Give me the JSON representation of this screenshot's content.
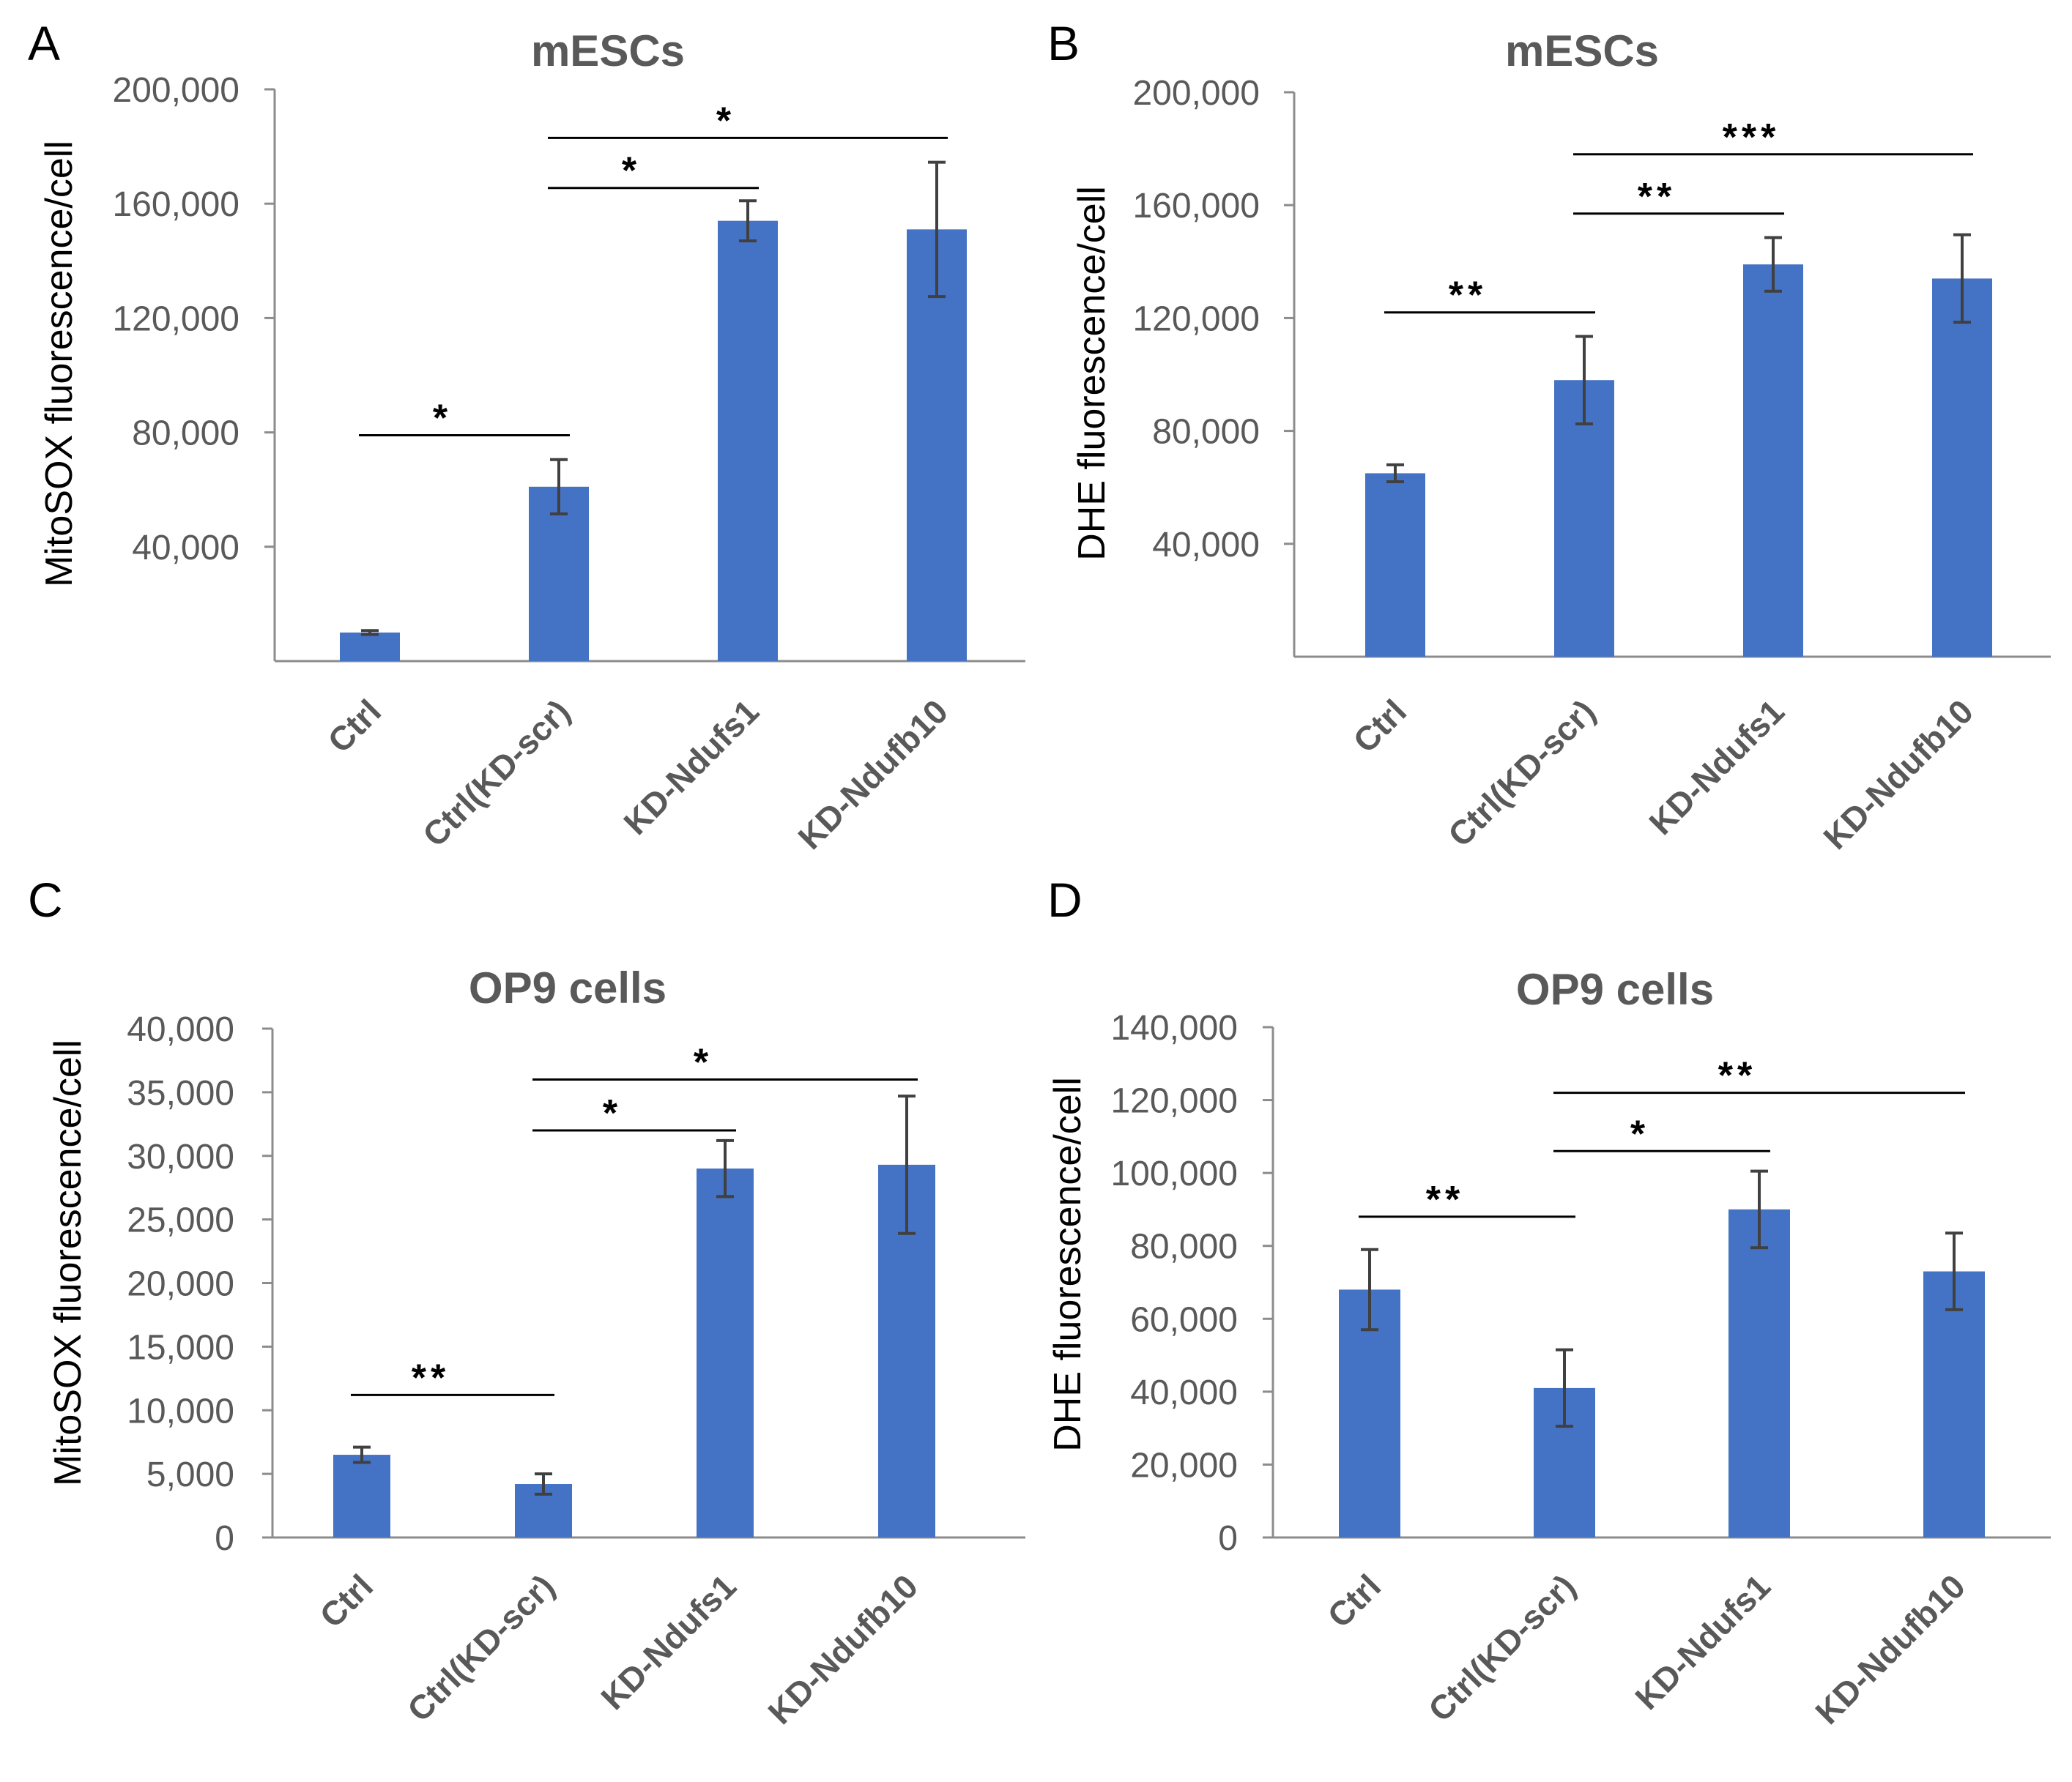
{
  "colors": {
    "bar": "#4472C4",
    "axis": "#8C8C8C",
    "tick_text": "#595959",
    "title": "#595959",
    "label": "#000000",
    "error_bar": "#404040",
    "sig_line": "#000000"
  },
  "chart_data": [
    {
      "panel": "A",
      "type": "bar",
      "title": "mESCs",
      "ylabel": "MitoSOX fluorescence/cell",
      "xlabel": "",
      "categories": [
        "Ctrl",
        "Ctrl(KD-scr)",
        "KD-Ndufs1",
        "KD-Ndufb10"
      ],
      "values": [
        10000,
        61000,
        154000,
        151000
      ],
      "errors": [
        700,
        9500,
        7000,
        23500
      ],
      "ylim": [
        0,
        200000
      ],
      "yticks": [
        40000,
        80000,
        120000,
        160000,
        200000
      ],
      "ytick_labels": [
        "40,000",
        "80,000",
        "120,000",
        "160,000",
        "200,000"
      ],
      "grid": false,
      "significance": [
        {
          "from": 0,
          "to": 1,
          "label": "*",
          "level": 79000
        },
        {
          "from": 1,
          "to": 2,
          "label": "*",
          "level": 165500
        },
        {
          "from": 1,
          "to": 3,
          "label": "*",
          "level": 183000
        }
      ]
    },
    {
      "panel": "B",
      "type": "bar",
      "title": "mESCs",
      "ylabel": "DHE fluorescence/cell",
      "xlabel": "",
      "categories": [
        "Ctrl",
        "Ctrl(KD-scr)",
        "KD-Ndufs1",
        "KD-Ndufb10"
      ],
      "values": [
        65000,
        98000,
        139000,
        134000
      ],
      "errors": [
        3000,
        15500,
        9500,
        15500
      ],
      "ylim": [
        0,
        200000
      ],
      "yticks": [
        40000,
        80000,
        120000,
        160000,
        200000
      ],
      "ytick_labels": [
        "40,000",
        "80,000",
        "120,000",
        "160,000",
        "200,000"
      ],
      "grid": false,
      "significance": [
        {
          "from": 0,
          "to": 1,
          "label": "**",
          "level": 122000
        },
        {
          "from": 1,
          "to": 2,
          "label": "**",
          "level": 157000
        },
        {
          "from": 1,
          "to": 3,
          "label": "***",
          "level": 178000
        }
      ]
    },
    {
      "panel": "C",
      "type": "bar",
      "title": "OP9 cells",
      "ylabel": "MitoSOX fluorescence/cell",
      "xlabel": "",
      "categories": [
        "Ctrl",
        "Ctrl(KD-scr)",
        "KD-Ndufs1",
        "KD-Ndufb10"
      ],
      "values": [
        6500,
        4200,
        29000,
        29300
      ],
      "errors": [
        600,
        800,
        2200,
        5400
      ],
      "ylim": [
        0,
        40000
      ],
      "yticks": [
        0,
        5000,
        10000,
        15000,
        20000,
        25000,
        30000,
        35000,
        40000
      ],
      "ytick_labels": [
        "0",
        "5,000",
        "10,000",
        "15,000",
        "20,000",
        "25,000",
        "30,000",
        "35,000",
        "40,000"
      ],
      "grid": false,
      "significance": [
        {
          "from": 0,
          "to": 1,
          "label": "**",
          "level": 11200
        },
        {
          "from": 1,
          "to": 2,
          "label": "*",
          "level": 32000
        },
        {
          "from": 1,
          "to": 3,
          "label": "*",
          "level": 36000
        }
      ]
    },
    {
      "panel": "D",
      "type": "bar",
      "title": "OP9 cells",
      "ylabel": "DHE fluorescence/cell",
      "xlabel": "",
      "categories": [
        "Ctrl",
        "Ctrl(KD-scr)",
        "KD-Ndufs1",
        "KD-Ndufb10"
      ],
      "values": [
        68000,
        41000,
        90000,
        73000
      ],
      "errors": [
        11000,
        10500,
        10500,
        10500
      ],
      "ylim": [
        0,
        140000
      ],
      "yticks": [
        0,
        20000,
        40000,
        60000,
        80000,
        100000,
        120000,
        140000
      ],
      "ytick_labels": [
        "0",
        "20,000",
        "40,000",
        "60,000",
        "80,000",
        "100,000",
        "120,000",
        "140,000"
      ],
      "grid": false,
      "significance": [
        {
          "from": 0,
          "to": 1,
          "label": "**",
          "level": 88000
        },
        {
          "from": 1,
          "to": 2,
          "label": "*",
          "level": 106000
        },
        {
          "from": 1,
          "to": 3,
          "label": "**",
          "level": 122000
        }
      ]
    }
  ]
}
